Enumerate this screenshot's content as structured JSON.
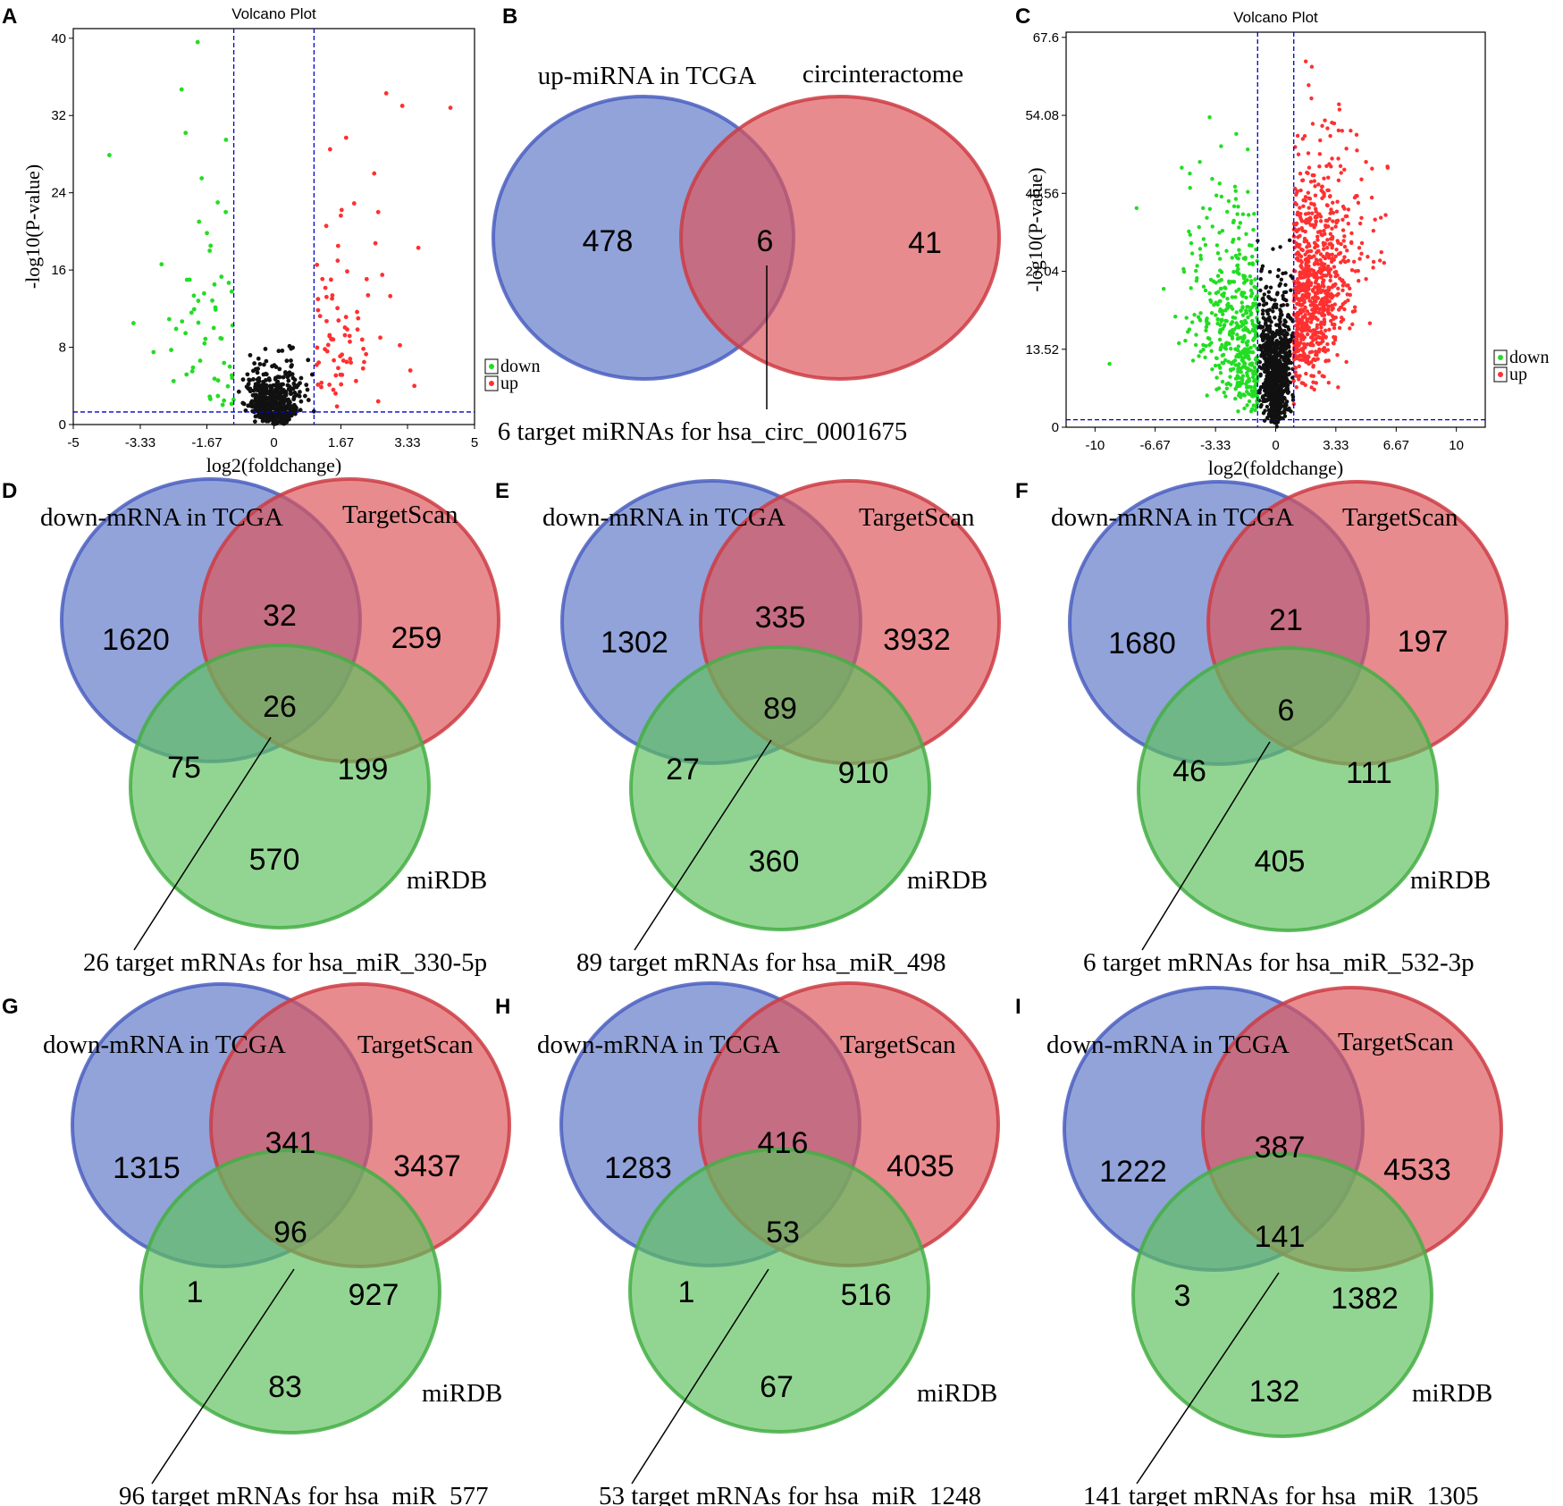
{
  "colors": {
    "blue_fill": "#5e78c8",
    "blue_stroke": "#4b5fc0",
    "red_fill": "#dd5458",
    "red_stroke": "#cd3c44",
    "green_fill": "#5ec15e",
    "green_stroke": "#45ae45",
    "up_point": "#ff3030",
    "down_point": "#22dd22",
    "ns_point": "#111111",
    "threshold_line": "#0000cc"
  },
  "chart_data": [
    {
      "panel": "A",
      "type": "scatter",
      "title": "Volcano Plot",
      "xlabel": "log2(foldchange)",
      "ylabel": "-log10(P-value)",
      "xlim": [
        -5,
        5
      ],
      "ylim": [
        0,
        41
      ],
      "xticks": [
        "-5",
        "-3.33",
        "-1.67",
        "0",
        "1.67",
        "3.33",
        "5"
      ],
      "yticks": [
        "0",
        "8",
        "16",
        "24",
        "32",
        "40"
      ],
      "thresholds": {
        "x": [
          -1,
          1
        ],
        "y": 1.3
      },
      "legend": [
        "down",
        "up"
      ],
      "legend_position": "right",
      "sample_points": {
        "up": [
          [
            4.4,
            32.8
          ],
          [
            2.8,
            34.3
          ],
          [
            3.2,
            33.0
          ],
          [
            2.5,
            26.0
          ],
          [
            2.6,
            22.0
          ],
          [
            3.6,
            18.3
          ],
          [
            2.7,
            15.5
          ],
          [
            3.4,
            5.6
          ],
          [
            3.5,
            4.0
          ],
          [
            2.1,
            11.0
          ],
          [
            1.8,
            29.7
          ],
          [
            2.0,
            22.9
          ],
          [
            1.4,
            28.5
          ],
          [
            1.6,
            18.5
          ],
          [
            2.2,
            8.8
          ],
          [
            1.9,
            6.8
          ],
          [
            2.6,
            2.4
          ],
          [
            2.9,
            13.3
          ]
        ],
        "down": [
          [
            -4.1,
            27.9
          ],
          [
            -2.3,
            34.7
          ],
          [
            -1.9,
            39.6
          ],
          [
            -2.2,
            30.2
          ],
          [
            -3.5,
            10.5
          ],
          [
            -2.8,
            16.6
          ],
          [
            -3.0,
            7.5
          ],
          [
            -2.5,
            4.5
          ],
          [
            -1.4,
            23.0
          ],
          [
            -1.6,
            18.0
          ],
          [
            -1.5,
            10.0
          ],
          [
            -2.1,
            15.0
          ],
          [
            -1.8,
            25.5
          ],
          [
            -1.2,
            22.0
          ],
          [
            -1.1,
            6.0
          ]
        ]
      }
    },
    {
      "panel": "B",
      "type": "venn",
      "sets": [
        "up-miRNA in TCGA",
        "circinteractome"
      ],
      "regions": {
        "only_1": "478",
        "both": "6",
        "only_2": "41"
      },
      "caption": "6 target miRNAs for hsa_circ_0001675"
    },
    {
      "panel": "C",
      "type": "scatter",
      "title": "Volcano Plot",
      "xlabel": "log2(foldchange)",
      "ylabel": "-log10(P-value)",
      "xlim": [
        -11.6,
        11.6
      ],
      "ylim": [
        0,
        68.5
      ],
      "xticks": [
        "-10",
        "-6.67",
        "-3.33",
        "0",
        "3.33",
        "6.67",
        "10"
      ],
      "yticks": [
        "0",
        "13.52",
        "27.04",
        "40.56",
        "54.08",
        "67.6"
      ],
      "thresholds": {
        "x": [
          -1,
          1
        ],
        "y": 1.3
      },
      "legend": [
        "down",
        "up"
      ],
      "legend_position": "right",
      "sample_points": {
        "up": [
          [
            2.0,
            62.5
          ],
          [
            3.5,
            56.0
          ],
          [
            4.5,
            48.0
          ],
          [
            5.0,
            46.0
          ],
          [
            6.2,
            45.0
          ],
          [
            6.0,
            28.5
          ],
          [
            3.0,
            40.0
          ],
          [
            2.5,
            30.0
          ],
          [
            1.5,
            50.0
          ],
          [
            4.0,
            22.0
          ],
          [
            5.5,
            36.0
          ]
        ],
        "down": [
          [
            -7.7,
            38.0
          ],
          [
            -9.2,
            11.0
          ],
          [
            -5.2,
            45.0
          ],
          [
            -4.2,
            46.0
          ],
          [
            -3.0,
            40.0
          ],
          [
            -6.2,
            24.0
          ],
          [
            -5.0,
            15.0
          ],
          [
            -2.5,
            10.0
          ],
          [
            -3.8,
            5.5
          ],
          [
            -2.0,
            30.0
          ]
        ]
      }
    },
    {
      "panel": "D",
      "type": "venn",
      "sets": [
        "down-mRNA in TCGA",
        "TargetScan",
        "miRDB"
      ],
      "regions": {
        "only_1": "1620",
        "only_2": "259",
        "only_3": "570",
        "r12": "32",
        "r13": "75",
        "r23": "199",
        "r123": "26"
      },
      "caption": "26 target mRNAs for hsa_miR_330-5p"
    },
    {
      "panel": "E",
      "type": "venn",
      "sets": [
        "down-mRNA in TCGA",
        "TargetScan",
        "miRDB"
      ],
      "regions": {
        "only_1": "1302",
        "only_2": "3932",
        "only_3": "360",
        "r12": "335",
        "r13": "27",
        "r23": "910",
        "r123": "89"
      },
      "caption": "89 target mRNAs for hsa_miR_498"
    },
    {
      "panel": "F",
      "type": "venn",
      "sets": [
        "down-mRNA in TCGA",
        "TargetScan",
        "miRDB"
      ],
      "regions": {
        "only_1": "1680",
        "only_2": "197",
        "only_3": "405",
        "r12": "21",
        "r13": "46",
        "r23": "111",
        "r123": "6"
      },
      "caption": "6 target mRNAs for hsa_miR_532-3p"
    },
    {
      "panel": "G",
      "type": "venn",
      "sets": [
        "down-mRNA in TCGA",
        "TargetScan",
        "miRDB"
      ],
      "regions": {
        "only_1": "1315",
        "only_2": "3437",
        "only_3": "83",
        "r12": "341",
        "r13": "1",
        "r23": "927",
        "r123": "96"
      },
      "caption": "96 target mRNAs for hsa_miR_577"
    },
    {
      "panel": "H",
      "type": "venn",
      "sets": [
        "down-mRNA in TCGA",
        "TargetScan",
        "miRDB"
      ],
      "regions": {
        "only_1": "1283",
        "only_2": "4035",
        "only_3": "67",
        "r12": "416",
        "r13": "1",
        "r23": "516",
        "r123": "53"
      },
      "caption": "53 target mRNAs for hsa_miR_1248"
    },
    {
      "panel": "I",
      "type": "venn",
      "sets": [
        "down-mRNA in TCGA",
        "TargetScan",
        "miRDB"
      ],
      "regions": {
        "only_1": "1222",
        "only_2": "4533",
        "only_3": "132",
        "r12": "387",
        "r13": "3",
        "r23": "1382",
        "r123": "141"
      },
      "caption": "141 target mRNAs for hsa_miR_1305"
    }
  ]
}
